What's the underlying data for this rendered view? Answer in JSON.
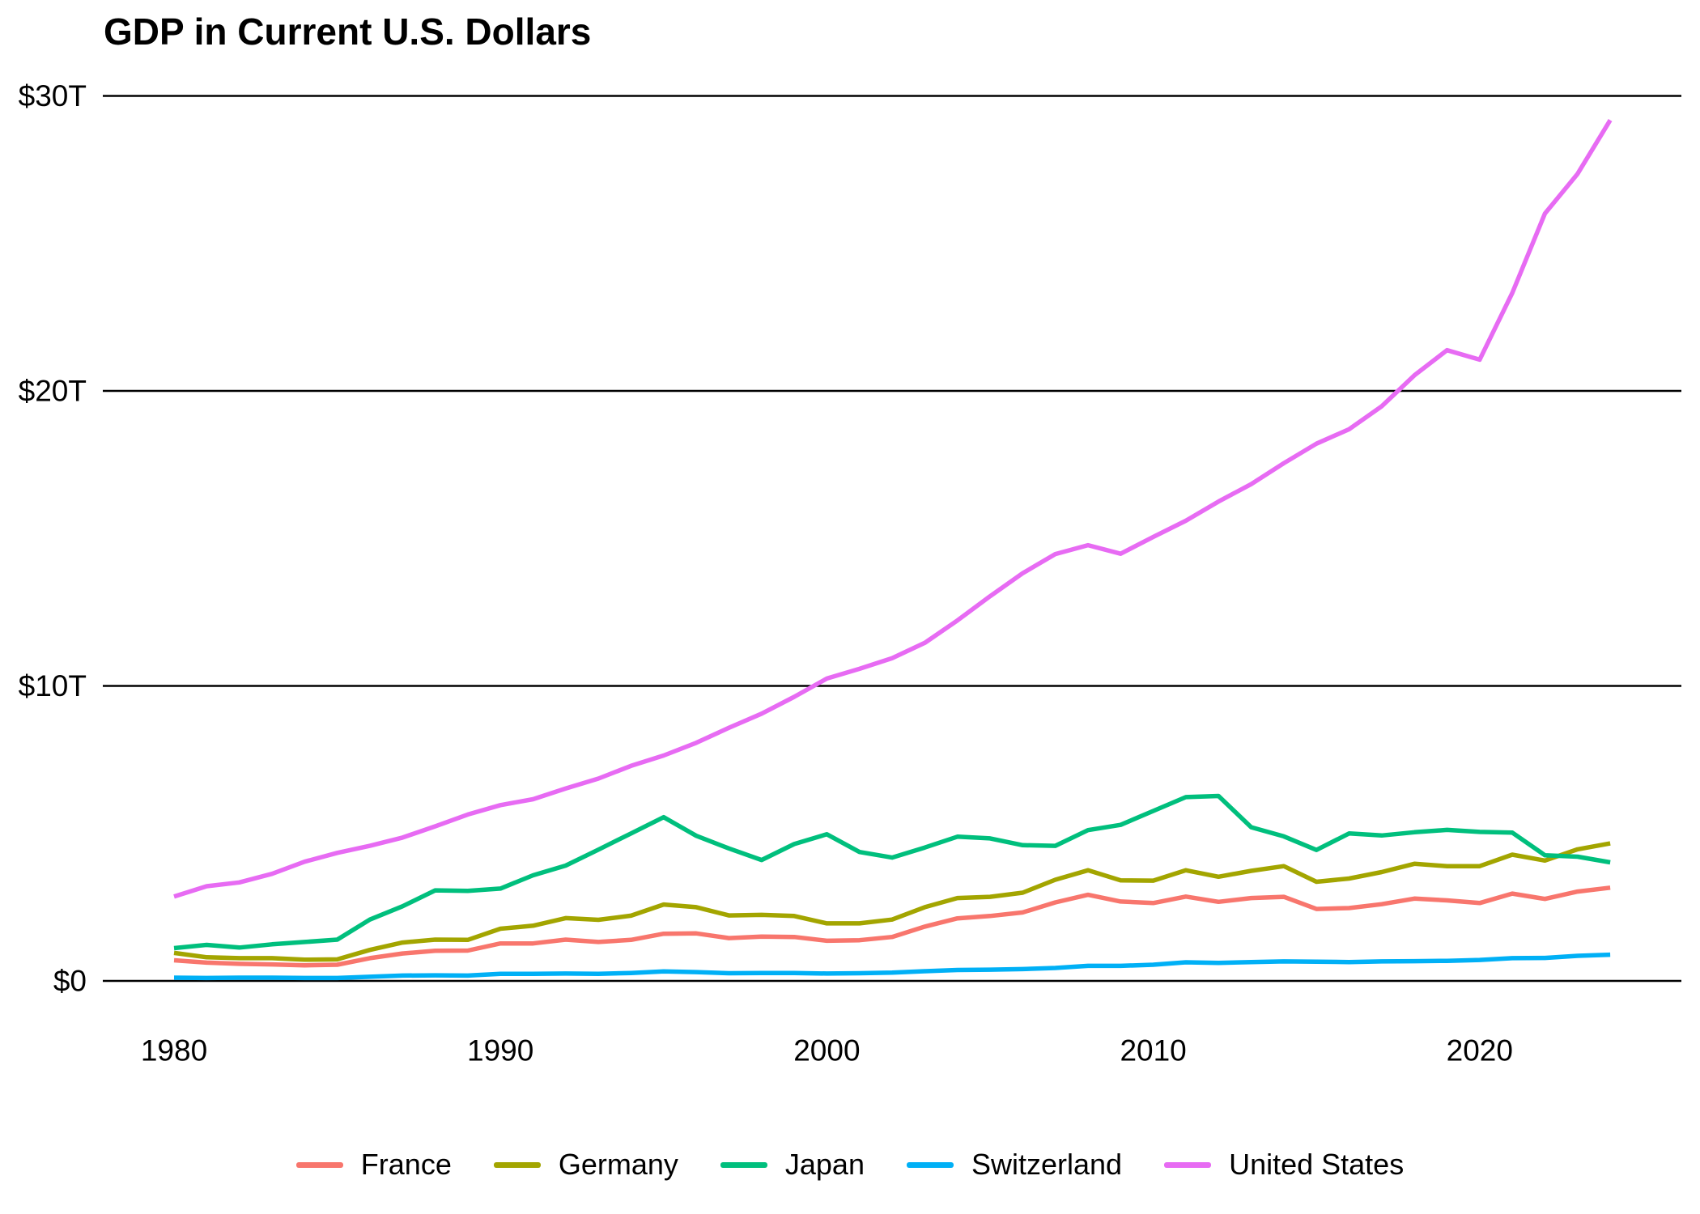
{
  "title": "GDP in Current U.S. Dollars",
  "y_axis": {
    "ticks": [
      {
        "label": "$0",
        "value": 0
      },
      {
        "label": "$10T",
        "value": 10
      },
      {
        "label": "$20T",
        "value": 20
      },
      {
        "label": "$30T",
        "value": 30
      }
    ]
  },
  "x_axis": {
    "ticks": [
      {
        "label": "1980",
        "value": 1980
      },
      {
        "label": "1990",
        "value": 1990
      },
      {
        "label": "2000",
        "value": 2000
      },
      {
        "label": "2010",
        "value": 2010
      },
      {
        "label": "2020",
        "value": 2020
      }
    ]
  },
  "legend": [
    {
      "label": "France",
      "color": "#F8766D"
    },
    {
      "label": "Germany",
      "color": "#A3A500"
    },
    {
      "label": "Japan",
      "color": "#00BF7D"
    },
    {
      "label": "Switzerland",
      "color": "#00B0F6"
    },
    {
      "label": "United States",
      "color": "#E76BF3"
    }
  ],
  "chart_data": {
    "type": "line",
    "title": "GDP in Current U.S. Dollars",
    "unit": "trillions of current U.S. dollars",
    "xlabel": "",
    "ylabel": "",
    "xlim": [
      1980,
      2024
    ],
    "ylim": [
      0,
      30
    ],
    "grid": "horizontal",
    "legend_position": "bottom",
    "x": [
      1980,
      1981,
      1982,
      1983,
      1984,
      1985,
      1986,
      1987,
      1988,
      1989,
      1990,
      1991,
      1992,
      1993,
      1994,
      1995,
      1996,
      1997,
      1998,
      1999,
      2000,
      2001,
      2002,
      2003,
      2004,
      2005,
      2006,
      2007,
      2008,
      2009,
      2010,
      2011,
      2012,
      2013,
      2014,
      2015,
      2016,
      2017,
      2018,
      2019,
      2020,
      2021,
      2022,
      2023,
      2024
    ],
    "series": [
      {
        "name": "France",
        "color": "#F8766D",
        "values": [
          0.7,
          0.62,
          0.58,
          0.56,
          0.53,
          0.55,
          0.77,
          0.93,
          1.02,
          1.03,
          1.27,
          1.27,
          1.4,
          1.32,
          1.39,
          1.6,
          1.61,
          1.45,
          1.5,
          1.49,
          1.36,
          1.38,
          1.49,
          1.84,
          2.12,
          2.2,
          2.32,
          2.66,
          2.92,
          2.69,
          2.64,
          2.86,
          2.68,
          2.81,
          2.85,
          2.44,
          2.47,
          2.6,
          2.79,
          2.73,
          2.64,
          2.96,
          2.78,
          3.03,
          3.16
        ]
      },
      {
        "name": "Germany",
        "color": "#A3A500",
        "values": [
          0.95,
          0.8,
          0.77,
          0.77,
          0.72,
          0.73,
          1.05,
          1.3,
          1.4,
          1.39,
          1.77,
          1.87,
          2.13,
          2.07,
          2.21,
          2.59,
          2.5,
          2.22,
          2.24,
          2.2,
          1.95,
          1.95,
          2.08,
          2.5,
          2.81,
          2.85,
          2.99,
          3.43,
          3.75,
          3.41,
          3.4,
          3.75,
          3.53,
          3.73,
          3.89,
          3.36,
          3.47,
          3.69,
          3.97,
          3.89,
          3.89,
          4.28,
          4.08,
          4.46,
          4.66
        ]
      },
      {
        "name": "Japan",
        "color": "#00BF7D",
        "values": [
          1.11,
          1.22,
          1.13,
          1.24,
          1.32,
          1.4,
          2.08,
          2.53,
          3.07,
          3.05,
          3.13,
          3.58,
          3.91,
          4.45,
          5.0,
          5.55,
          4.92,
          4.49,
          4.1,
          4.64,
          4.97,
          4.37,
          4.18,
          4.52,
          4.89,
          4.83,
          4.6,
          4.58,
          5.11,
          5.29,
          5.76,
          6.23,
          6.27,
          5.21,
          4.9,
          4.44,
          5.0,
          4.93,
          5.04,
          5.12,
          5.05,
          5.03,
          4.26,
          4.21,
          4.02
        ]
      },
      {
        "name": "Switzerland",
        "color": "#00B0F6",
        "values": [
          0.11,
          0.1,
          0.11,
          0.11,
          0.1,
          0.1,
          0.14,
          0.18,
          0.19,
          0.18,
          0.24,
          0.24,
          0.25,
          0.24,
          0.27,
          0.32,
          0.3,
          0.26,
          0.27,
          0.27,
          0.25,
          0.26,
          0.28,
          0.33,
          0.37,
          0.38,
          0.4,
          0.44,
          0.51,
          0.51,
          0.55,
          0.63,
          0.61,
          0.64,
          0.66,
          0.65,
          0.64,
          0.66,
          0.67,
          0.68,
          0.71,
          0.77,
          0.78,
          0.85,
          0.89
        ]
      },
      {
        "name": "United States",
        "color": "#E76BF3",
        "values": [
          2.86,
          3.21,
          3.34,
          3.63,
          4.04,
          4.34,
          4.58,
          4.86,
          5.24,
          5.64,
          5.96,
          6.16,
          6.52,
          6.86,
          7.29,
          7.64,
          8.07,
          8.58,
          9.06,
          9.63,
          10.25,
          10.58,
          10.94,
          11.46,
          12.22,
          13.04,
          13.82,
          14.47,
          14.77,
          14.48,
          15.05,
          15.6,
          16.25,
          16.84,
          17.55,
          18.21,
          18.7,
          19.48,
          20.53,
          21.38,
          21.06,
          23.32,
          26.01,
          27.36,
          29.18
        ]
      }
    ]
  }
}
